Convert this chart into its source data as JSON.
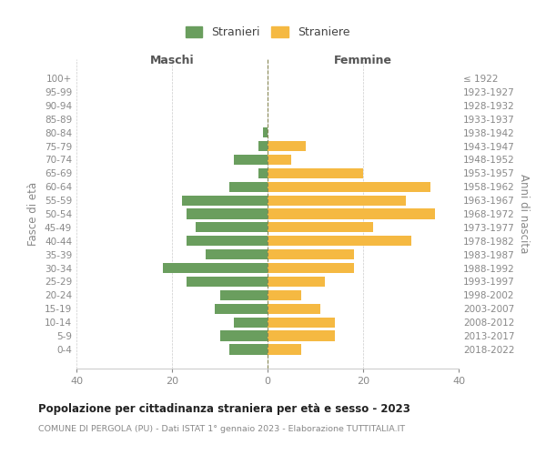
{
  "age_groups": [
    "100+",
    "95-99",
    "90-94",
    "85-89",
    "80-84",
    "75-79",
    "70-74",
    "65-69",
    "60-64",
    "55-59",
    "50-54",
    "45-49",
    "40-44",
    "35-39",
    "30-34",
    "25-29",
    "20-24",
    "15-19",
    "10-14",
    "5-9",
    "0-4"
  ],
  "birth_years": [
    "≤ 1922",
    "1923-1927",
    "1928-1932",
    "1933-1937",
    "1938-1942",
    "1943-1947",
    "1948-1952",
    "1953-1957",
    "1958-1962",
    "1963-1967",
    "1968-1972",
    "1973-1977",
    "1978-1982",
    "1983-1987",
    "1988-1992",
    "1993-1997",
    "1998-2002",
    "2003-2007",
    "2008-2012",
    "2013-2017",
    "2018-2022"
  ],
  "maschi": [
    0,
    0,
    0,
    0,
    1,
    2,
    7,
    2,
    8,
    18,
    17,
    15,
    17,
    13,
    22,
    17,
    10,
    11,
    7,
    10,
    8
  ],
  "femmine": [
    0,
    0,
    0,
    0,
    0,
    8,
    5,
    20,
    34,
    29,
    35,
    22,
    30,
    18,
    18,
    12,
    7,
    11,
    14,
    14,
    7
  ],
  "color_maschi": "#6a9e5e",
  "color_femmine": "#f5b942",
  "background_color": "#ffffff",
  "grid_color": "#cccccc",
  "title": "Popolazione per cittadinanza straniera per età e sesso - 2023",
  "subtitle": "COMUNE DI PERGOLA (PU) - Dati ISTAT 1° gennaio 2023 - Elaborazione TUTTITALIA.IT",
  "xlabel_left": "Maschi",
  "xlabel_right": "Femmine",
  "ylabel_left": "Fasce di età",
  "ylabel_right": "Anni di nascita",
  "legend_maschi": "Stranieri",
  "legend_femmine": "Straniere",
  "xlim": 40,
  "label_color": "#888888",
  "header_color": "#555555",
  "title_color": "#222222"
}
